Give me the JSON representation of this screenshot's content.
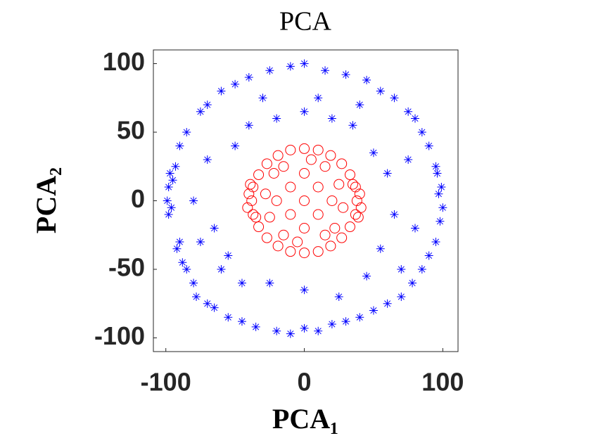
{
  "chart_data": {
    "type": "scatter",
    "title": "PCA",
    "x_label": "PCA₁",
    "y_label": "PCA₂",
    "xlim": [
      -109,
      111
    ],
    "ylim": [
      -110,
      110
    ],
    "xticks": [
      -100,
      0,
      100
    ],
    "yticks": [
      -100,
      -50,
      0,
      50,
      100
    ],
    "grid": false,
    "series": [
      {
        "color": "#0000ff",
        "marker": "star",
        "x": [
          -97,
          -98,
          -99,
          -96,
          -98,
          -95,
          -93,
          -90,
          -92,
          -88,
          -85,
          -80,
          -78,
          -70,
          -65,
          -55,
          -45,
          -35,
          -20,
          -10,
          0,
          10,
          20,
          30,
          40,
          50,
          60,
          70,
          78,
          85,
          90,
          95,
          98,
          100,
          97,
          99,
          96,
          95,
          90,
          85,
          80,
          75,
          65,
          55,
          45,
          30,
          15,
          0,
          -10,
          -25,
          -40,
          -50,
          -60,
          -70,
          -75,
          -85,
          -90,
          -70,
          -65,
          -55,
          -50,
          -40,
          -20,
          0,
          20,
          35,
          50,
          60,
          65,
          55,
          45,
          25,
          0,
          -25,
          -45,
          -60,
          -80,
          -75,
          80,
          75,
          70,
          -30,
          10,
          40
        ],
        "y": [
          20,
          10,
          0,
          -5,
          -10,
          15,
          25,
          -30,
          -35,
          -45,
          -50,
          -60,
          -70,
          -75,
          -78,
          -85,
          -88,
          -92,
          -95,
          -97,
          -93,
          -95,
          -90,
          -88,
          -85,
          -80,
          -75,
          -70,
          -60,
          -50,
          -40,
          -30,
          -15,
          -5,
          5,
          10,
          20,
          25,
          40,
          50,
          60,
          65,
          75,
          80,
          88,
          92,
          95,
          100,
          98,
          95,
          90,
          85,
          80,
          70,
          65,
          50,
          40,
          30,
          -20,
          -40,
          40,
          55,
          60,
          65,
          60,
          55,
          35,
          20,
          -10,
          -35,
          -55,
          -70,
          -65,
          -60,
          -60,
          -50,
          0,
          -30,
          -20,
          30,
          -50,
          75,
          75,
          70
        ]
      },
      {
        "color": "#ff0000",
        "marker": "circle",
        "x": [
          38,
          37,
          33,
          27,
          19,
          10,
          0,
          -10,
          -19,
          -27,
          -33,
          -37,
          -38,
          -37,
          -33,
          -27,
          -19,
          -10,
          0,
          10,
          19,
          27,
          33,
          37,
          40,
          41,
          39,
          -40,
          -41,
          -39,
          35,
          -35,
          0,
          10,
          -10,
          10,
          -10,
          20,
          -20,
          0,
          0,
          15,
          -15,
          15,
          -15,
          25,
          -25,
          5,
          -5,
          28,
          -28,
          22,
          -22
        ],
        "y": [
          0,
          10,
          19,
          27,
          33,
          37,
          38,
          37,
          33,
          27,
          19,
          10,
          0,
          -10,
          -19,
          -27,
          -33,
          -37,
          -38,
          -37,
          -33,
          -27,
          -19,
          -10,
          5,
          -5,
          -12,
          5,
          -5,
          12,
          12,
          -12,
          0,
          10,
          10,
          -10,
          -10,
          0,
          0,
          20,
          -20,
          25,
          25,
          -25,
          -25,
          12,
          -12,
          30,
          -30,
          -5,
          5,
          -20,
          20
        ]
      }
    ]
  }
}
